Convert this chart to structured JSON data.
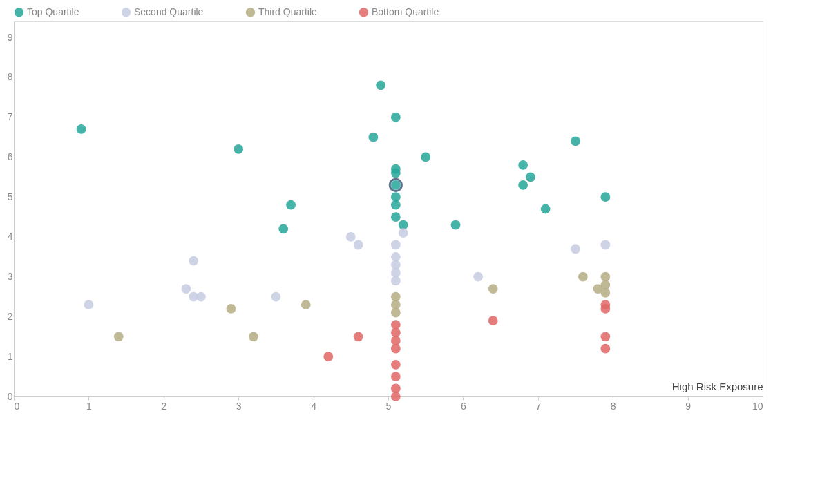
{
  "chart_data": {
    "type": "scatter",
    "xlabel": "High Risk Exposure",
    "xlim": [
      0,
      10
    ],
    "xticks": [
      0,
      1,
      2,
      3,
      4,
      5,
      6,
      7,
      8,
      9,
      10
    ],
    "ylim": [
      0,
      9.4
    ],
    "yticks": [
      0,
      1,
      2,
      3,
      4,
      5,
      6,
      7,
      8,
      9
    ],
    "grid": false,
    "legend": "top",
    "marker": "circle",
    "series": [
      {
        "name": "Top Quartile",
        "color": "#26a69a",
        "x": [
          0.9,
          3.0,
          3.7,
          3.6,
          4.9,
          5.1,
          4.8,
          5.5,
          5.1,
          5.1,
          5.1,
          5.1,
          5.1,
          5.1,
          5.2,
          5.9,
          6.8,
          6.9,
          6.8,
          7.1,
          7.5,
          7.9
        ],
        "values": [
          6.7,
          6.2,
          4.8,
          4.2,
          7.8,
          7.0,
          6.5,
          6.0,
          5.7,
          5.6,
          5.3,
          5.0,
          4.8,
          4.5,
          4.3,
          4.3,
          5.8,
          5.5,
          5.3,
          4.7,
          6.4,
          5.0
        ]
      },
      {
        "name": "Second Quartile",
        "color": "#c5cde0",
        "x": [
          1.0,
          2.3,
          2.4,
          2.4,
          2.5,
          3.5,
          4.5,
          4.6,
          5.2,
          5.1,
          5.1,
          5.1,
          5.1,
          5.1,
          6.2,
          7.5,
          7.9
        ],
        "values": [
          2.3,
          2.7,
          3.4,
          2.5,
          2.5,
          2.5,
          4.0,
          3.8,
          4.1,
          3.8,
          3.5,
          3.3,
          3.1,
          2.9,
          3.0,
          3.7,
          3.8
        ]
      },
      {
        "name": "Third Quartile",
        "color": "#b5ad84",
        "x": [
          1.4,
          2.9,
          3.2,
          3.9,
          5.1,
          5.1,
          5.1,
          6.4,
          7.6,
          7.8,
          7.9,
          7.9,
          7.9
        ],
        "values": [
          1.5,
          2.2,
          1.5,
          2.3,
          2.5,
          2.3,
          2.1,
          2.7,
          3.0,
          2.7,
          3.0,
          2.8,
          2.6
        ]
      },
      {
        "name": "Bottom Quartile",
        "color": "#e06666",
        "x": [
          4.2,
          4.6,
          5.1,
          5.1,
          5.1,
          5.1,
          5.1,
          5.1,
          5.1,
          5.1,
          6.4,
          7.9,
          7.9,
          7.9,
          7.9
        ],
        "values": [
          1.0,
          1.5,
          1.8,
          1.6,
          1.4,
          1.2,
          0.8,
          0.5,
          0.2,
          0.0,
          1.9,
          2.3,
          2.2,
          1.5,
          1.2
        ]
      },
      {
        "color": "#17375e",
        "x": [
          5.1
        ],
        "values": [
          5.3
        ]
      }
    ]
  }
}
